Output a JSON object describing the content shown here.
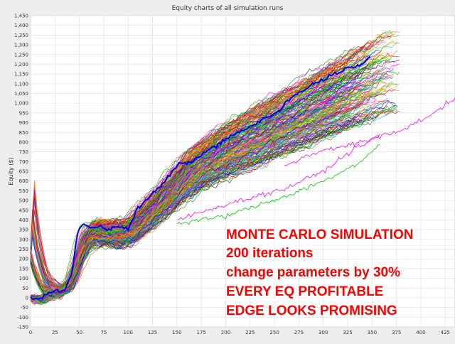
{
  "chart_data": {
    "type": "line",
    "title": "Equity charts of all simulation runs",
    "xlabel": "",
    "ylabel": "Equity ($)",
    "xlim": [
      0,
      435
    ],
    "ylim": [
      -150,
      1450
    ],
    "x_ticks": [
      0,
      25,
      50,
      75,
      100,
      125,
      150,
      175,
      200,
      225,
      250,
      275,
      300,
      325,
      350,
      375,
      400,
      425
    ],
    "y_ticks": [
      -150,
      -100,
      -50,
      0,
      50,
      100,
      150,
      200,
      250,
      300,
      350,
      400,
      450,
      500,
      550,
      600,
      650,
      700,
      750,
      800,
      850,
      900,
      950,
      1000,
      1050,
      1100,
      1150,
      1200,
      1250,
      1300,
      1350,
      1400,
      1450
    ],
    "grid": true,
    "legend": "none",
    "series_count": 200,
    "colors": [
      "#ff0000",
      "#0000ff",
      "#00aa00",
      "#ff00ff",
      "#00cccc",
      "#ffaa00",
      "#990099",
      "#008800",
      "#444444",
      "#aaaa00",
      "#ff6666",
      "#6666ff",
      "#00ff00",
      "#cc6600"
    ],
    "highlight_color": "#0000ee",
    "mean_path": [
      [
        0,
        0
      ],
      [
        10,
        -20
      ],
      [
        20,
        30
      ],
      [
        30,
        40
      ],
      [
        40,
        120
      ],
      [
        48,
        350
      ],
      [
        55,
        390
      ],
      [
        65,
        370
      ],
      [
        75,
        330
      ],
      [
        85,
        340
      ],
      [
        95,
        340
      ],
      [
        105,
        400
      ],
      [
        120,
        480
      ],
      [
        140,
        590
      ],
      [
        160,
        690
      ],
      [
        180,
        740
      ],
      [
        200,
        800
      ],
      [
        220,
        850
      ],
      [
        240,
        900
      ],
      [
        260,
        950
      ],
      [
        280,
        1000
      ],
      [
        300,
        1050
      ],
      [
        320,
        1100
      ],
      [
        340,
        1150
      ],
      [
        360,
        1200
      ]
    ],
    "highlight_series": [
      [
        0,
        0
      ],
      [
        8,
        -10
      ],
      [
        15,
        15
      ],
      [
        25,
        35
      ],
      [
        35,
        40
      ],
      [
        42,
        120
      ],
      [
        48,
        330
      ],
      [
        55,
        380
      ],
      [
        62,
        360
      ],
      [
        70,
        370
      ],
      [
        80,
        350
      ],
      [
        90,
        370
      ],
      [
        100,
        350
      ],
      [
        110,
        460
      ],
      [
        120,
        510
      ],
      [
        135,
        580
      ],
      [
        150,
        680
      ],
      [
        165,
        700
      ],
      [
        180,
        750
      ],
      [
        195,
        800
      ],
      [
        210,
        840
      ],
      [
        225,
        880
      ],
      [
        240,
        920
      ],
      [
        255,
        960
      ],
      [
        265,
        1020
      ],
      [
        275,
        1050
      ],
      [
        290,
        1100
      ],
      [
        300,
        1120
      ],
      [
        310,
        1150
      ],
      [
        325,
        1180
      ],
      [
        340,
        1200
      ],
      [
        350,
        1250
      ]
    ],
    "outlier_series": [
      {
        "color": "#ff00ff",
        "points": [
          [
            260,
            680
          ],
          [
            300,
            760
          ],
          [
            340,
            800
          ],
          [
            380,
            860
          ],
          [
            410,
            940
          ],
          [
            430,
            1010
          ],
          [
            440,
            1050
          ]
        ]
      },
      {
        "color": "#00cc00",
        "points": [
          [
            150,
            380
          ],
          [
            200,
            420
          ],
          [
            260,
            520
          ],
          [
            300,
            600
          ],
          [
            340,
            700
          ],
          [
            360,
            800
          ]
        ]
      },
      {
        "color": "#ff00ff",
        "points": [
          [
            150,
            400
          ],
          [
            200,
            480
          ],
          [
            260,
            560
          ],
          [
            300,
            650
          ],
          [
            330,
            760
          ],
          [
            360,
            840
          ]
        ]
      }
    ],
    "annotations": [
      "MONTE CARLO SIMULATION",
      "200 iterations",
      "change parameters by 30%",
      "EVERY EQ PROFITABLE",
      "EDGE LOOKS PROMISING"
    ]
  }
}
